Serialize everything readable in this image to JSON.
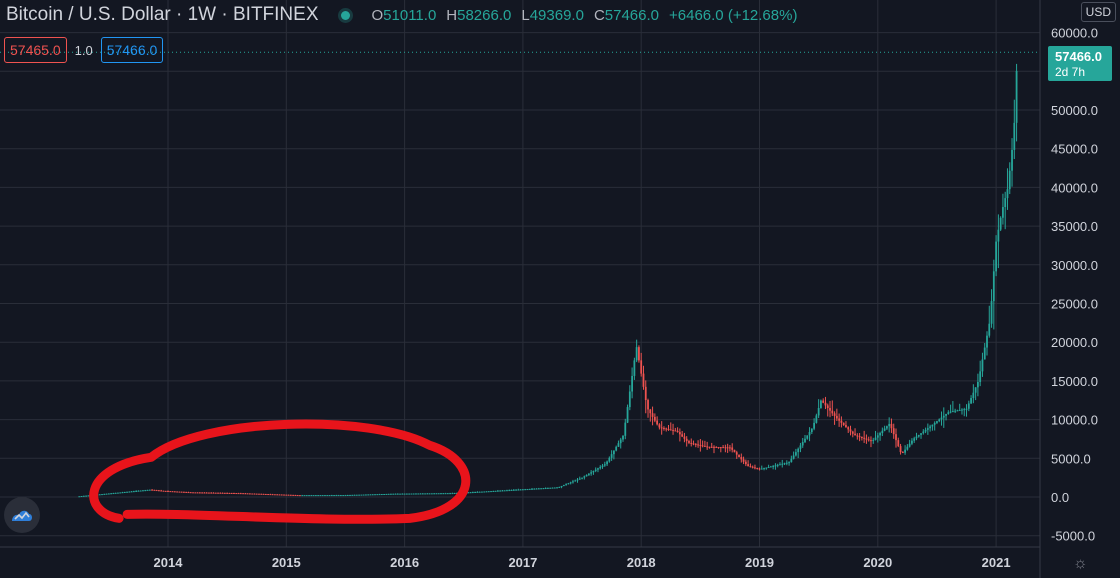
{
  "header": {
    "symbol": "Bitcoin / U.S. Dollar · 1W · BITFINEX",
    "ohlc": {
      "o_label": "O",
      "o": "51011.0",
      "h_label": "H",
      "h": "58266.0",
      "l_label": "L",
      "l": "49369.0",
      "c_label": "C",
      "c": "57466.0",
      "change": "+6466.0 (+12.68%)"
    }
  },
  "trade": {
    "sell": "57465.0",
    "qty": "1.0",
    "buy": "57466.0"
  },
  "currency": "USD",
  "last_price": {
    "price": "57466.0",
    "countdown": "2d 7h"
  },
  "colors": {
    "up": "#26a69a",
    "down": "#ef5350",
    "annotation": "#e8141b",
    "grid": "#2a2e39"
  },
  "icons": {
    "logo": "tradingview-cloud-icon",
    "settings": "gear-icon"
  },
  "chart_data": {
    "type": "candlestick",
    "title": "",
    "y_axis": {
      "min": -5000,
      "max": 60000,
      "ticks": [
        "60000.0",
        "55000.0",
        "50000.0",
        "45000.0",
        "40000.0",
        "35000.0",
        "30000.0",
        "25000.0",
        "20000.0",
        "15000.0",
        "10000.0",
        "5000.0",
        "0.0",
        "-5000.0"
      ]
    },
    "x_axis": {
      "ticks": [
        "2014",
        "2015",
        "2016",
        "2017",
        "2018",
        "2019",
        "2020",
        "2021"
      ]
    },
    "last_price": 57466,
    "series": [
      {
        "path": [
          [
            2013.25,
            100
          ],
          [
            2013.85,
            950
          ],
          [
            2013.95,
            800
          ],
          [
            2014.2,
            600
          ],
          [
            2014.6,
            500
          ],
          [
            2015.1,
            240
          ],
          [
            2015.5,
            250
          ],
          [
            2015.9,
            420
          ],
          [
            2016.4,
            500
          ],
          [
            2016.6,
            650
          ],
          [
            2016.95,
            950
          ],
          [
            2017.3,
            1250
          ],
          [
            2017.5,
            2500
          ],
          [
            2017.7,
            4300
          ],
          [
            2017.85,
            8000
          ],
          [
            2017.96,
            19500
          ],
          [
            2018.05,
            11500
          ],
          [
            2018.15,
            9000
          ],
          [
            2018.3,
            8500
          ],
          [
            2018.4,
            7000
          ],
          [
            2018.55,
            6500
          ],
          [
            2018.75,
            6400
          ],
          [
            2018.9,
            4000
          ],
          [
            2019.0,
            3600
          ],
          [
            2019.25,
            4500
          ],
          [
            2019.45,
            9000
          ],
          [
            2019.52,
            12500
          ],
          [
            2019.65,
            10200
          ],
          [
            2019.8,
            8000
          ],
          [
            2019.95,
            7200
          ],
          [
            2020.1,
            9500
          ],
          [
            2020.2,
            5500
          ],
          [
            2020.3,
            7500
          ],
          [
            2020.45,
            9200
          ],
          [
            2020.6,
            11000
          ],
          [
            2020.75,
            11400
          ],
          [
            2020.85,
            15000
          ],
          [
            2020.95,
            23000
          ],
          [
            2021.0,
            33000
          ],
          [
            2021.05,
            37000
          ],
          [
            2021.1,
            40000
          ],
          [
            2021.15,
            47000
          ],
          [
            2021.18,
            57466
          ]
        ]
      }
    ],
    "annotations": [
      {
        "type": "freehand-ellipse",
        "x_range": [
          2013.35,
          2016.55
        ],
        "y_range": [
          -2500,
          9000
        ]
      }
    ]
  }
}
